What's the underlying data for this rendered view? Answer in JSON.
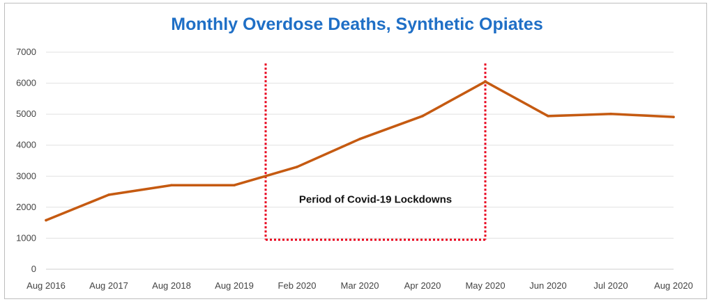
{
  "chart_data": {
    "type": "line",
    "title": "Monthly Overdose Deaths, Synthetic Opiates",
    "xlabel": "",
    "ylabel": "",
    "categories": [
      "Aug 2016",
      "Aug 2017",
      "Aug 2018",
      "Aug 2019",
      "Feb 2020",
      "Mar 2020",
      "Apr 2020",
      "May 2020",
      "Jun 2020",
      "Jul 2020",
      "Aug 2020"
    ],
    "series": [
      {
        "name": "Monthly Overdose Deaths",
        "values": [
          1580,
          2400,
          2710,
          2710,
          3300,
          4200,
          4940,
          6050,
          4940,
          5010,
          4910
        ],
        "color": "#c55a11"
      }
    ],
    "ylim": [
      0,
      7000
    ],
    "yticks": [
      0,
      1000,
      2000,
      3000,
      4000,
      5000,
      6000,
      7000
    ],
    "grid": true,
    "annotation": {
      "text": "Period of Covid-19 Lockdowns",
      "x_start": "Aug 2019",
      "x_end": "May 2020",
      "y_bottom": 950,
      "y_top": 6500,
      "color": "#e8001c"
    }
  }
}
